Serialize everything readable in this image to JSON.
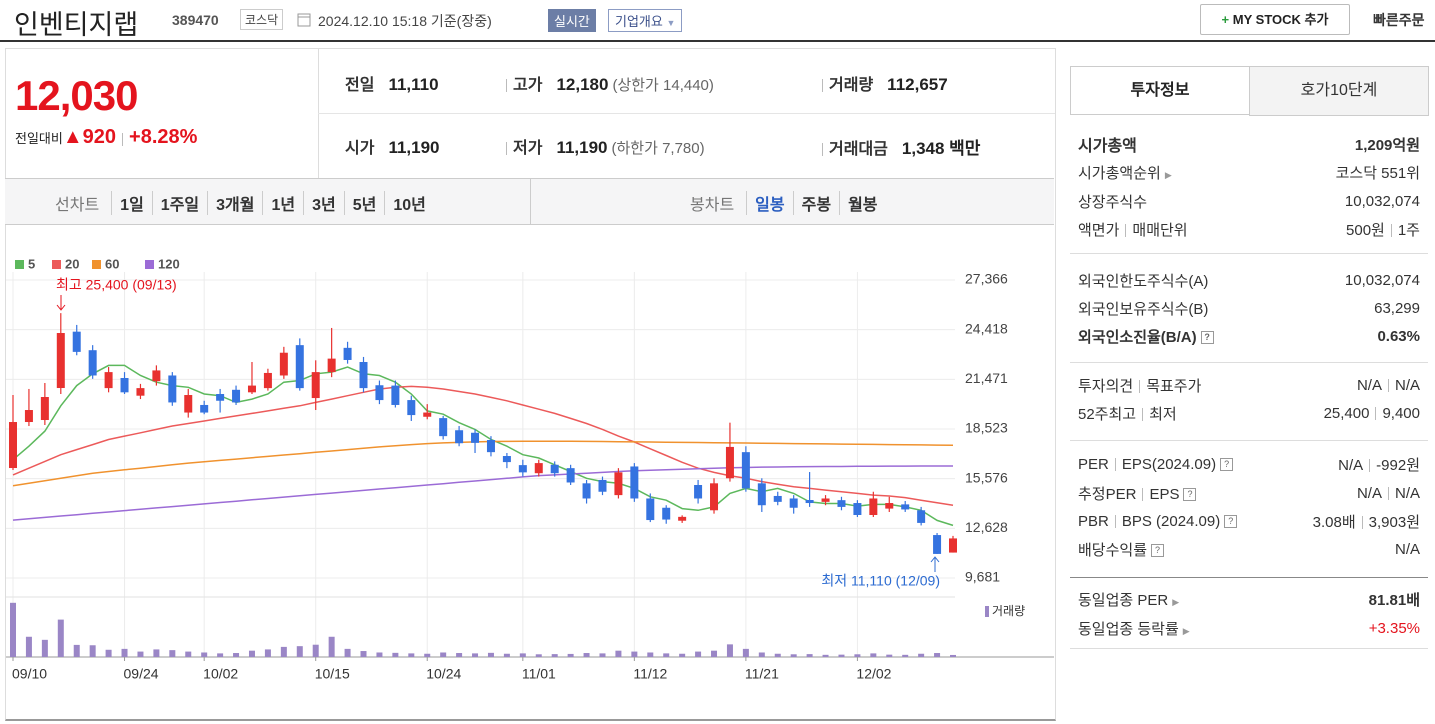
{
  "header": {
    "name": "인벤티지랩",
    "code": "389470",
    "market": "코스닥",
    "datetime": "2024.12.10 15:18",
    "basis": "기준(장중)",
    "realtime": "실시간",
    "company": "기업개요",
    "mystock": "MY STOCK 추가",
    "quick_order": "빠른주문"
  },
  "price": {
    "current": "12,030",
    "change_label": "전일대비",
    "change": "920",
    "rate": "+8.28%"
  },
  "summary": [
    {
      "label": "전일",
      "value": "11,110"
    },
    {
      "label": "고가",
      "value": "12,180",
      "note": "(상한가 14,440)"
    },
    {
      "label": "거래량",
      "value": "112,657"
    },
    {
      "label": "시가",
      "value": "11,190"
    },
    {
      "label": "저가",
      "value": "11,190",
      "note": "(하한가 7,780)"
    },
    {
      "label": "거래대금",
      "value": "1,348 백만"
    }
  ],
  "period_tabs": {
    "line_label": "선차트",
    "line": [
      "1일",
      "1주일",
      "3개월",
      "1년",
      "3년",
      "5년",
      "10년"
    ],
    "candle_label": "봉차트",
    "candle": [
      "일봉",
      "주봉",
      "월봉"
    ]
  },
  "chart_data": {
    "type": "candlestick",
    "categories": [
      "09/10",
      null,
      null,
      null,
      null,
      null,
      null,
      "09/24",
      null,
      null,
      null,
      null,
      "10/02",
      null,
      null,
      null,
      null,
      null,
      null,
      "10/15",
      null,
      null,
      null,
      null,
      null,
      null,
      "10/24",
      null,
      null,
      null,
      null,
      null,
      "11/01",
      null,
      null,
      null,
      null,
      null,
      null,
      "11/12",
      null,
      null,
      null,
      null,
      null,
      null,
      "11/21",
      null,
      null,
      null,
      null,
      null,
      null,
      "12/02",
      null,
      null,
      null,
      null,
      null,
      null
    ],
    "open": [
      16208,
      18938,
      19057,
      20956,
      24300,
      23200,
      20950,
      21550,
      20500,
      21360,
      21700,
      19500,
      19950,
      20600,
      20850,
      20700,
      20950,
      21700,
      23500,
      20360,
      21900,
      23340,
      22500,
      21120,
      21100,
      20240,
      19250,
      19170,
      18450,
      18300,
      17870,
      16920,
      16380,
      15900,
      16400,
      16200,
      15300,
      15500,
      14600,
      16300,
      14400,
      13850,
      13080,
      15200,
      13700,
      15600,
      17150,
      15300,
      14550,
      14400,
      14309,
      14200,
      14300,
      14130,
      13420,
      13800,
      14050,
      13700,
      12230,
      11190
    ],
    "high": [
      20541,
      20900,
      21253,
      25400,
      24700,
      23500,
      22200,
      21900,
      21200,
      22300,
      21900,
      20900,
      20200,
      20900,
      21100,
      22500,
      22100,
      23400,
      23900,
      22600,
      24520,
      23700,
      22800,
      21400,
      21400,
      20500,
      20000,
      19300,
      18700,
      18500,
      18100,
      17100,
      16700,
      16700,
      16600,
      16400,
      15500,
      15700,
      16200,
      16500,
      14700,
      14000,
      13400,
      15500,
      15600,
      18900,
      17500,
      15600,
      14800,
      14600,
      15970,
      14600,
      14500,
      14300,
      14800,
      14500,
      14250,
      13900,
      12350,
      12180
    ],
    "low": [
      16090,
      18700,
      18760,
      20600,
      22900,
      21500,
      20700,
      20600,
      20300,
      21100,
      19900,
      19200,
      19400,
      19500,
      19950,
      20600,
      20800,
      21500,
      20800,
      19650,
      21600,
      22400,
      20700,
      20000,
      19800,
      19000,
      19100,
      17900,
      17500,
      17100,
      16900,
      16200,
      15700,
      15700,
      15700,
      15200,
      14100,
      14600,
      14400,
      14200,
      13000,
      12900,
      12950,
      14100,
      13500,
      15400,
      14800,
      13600,
      14000,
      13500,
      13900,
      14000,
      13700,
      13300,
      13300,
      13600,
      13600,
      12800,
      11110,
      11190
    ],
    "close": [
      18938,
      19650,
      20422,
      24220,
      23100,
      21700,
      21900,
      20700,
      20950,
      22000,
      20100,
      20540,
      19500,
      20200,
      20100,
      21100,
      21850,
      23050,
      20950,
      21900,
      22700,
      22620,
      20950,
      20240,
      19950,
      19350,
      19500,
      18100,
      17680,
      17700,
      17150,
      16560,
      15950,
      16500,
      15900,
      15350,
      14400,
      14800,
      15950,
      14400,
      13120,
      13150,
      13310,
      14400,
      15300,
      17460,
      15000,
      14000,
      14200,
      13850,
      14130,
      14400,
      13900,
      13420,
      14400,
      14130,
      13750,
      12950,
      11110,
      12030
    ],
    "up_color": "#e8312f",
    "down_color": "#3573e0",
    "series": [
      {
        "name": "5",
        "color": "#5cb85c",
        "values": [
          16700,
          17500,
          18400,
          19900,
          21100,
          21800,
          22300,
          22300,
          21700,
          21300,
          21100,
          21000,
          20600,
          20500,
          20100,
          20300,
          20600,
          21300,
          21400,
          21800,
          21900,
          22200,
          21800,
          21700,
          21300,
          20600,
          19600,
          19400,
          18900,
          18500,
          17900,
          17500,
          17000,
          16800,
          16400,
          16000,
          15600,
          15400,
          15300,
          15000,
          14500,
          14300,
          13800,
          13700,
          13900,
          14700,
          15000,
          14800,
          15000,
          14700,
          14200,
          14100,
          14100,
          13950,
          14050,
          14050,
          13900,
          13700,
          13100,
          12800
        ]
      },
      {
        "name": "20",
        "color": "#ec5a5a",
        "values": [
          15800,
          16200,
          16600,
          17000,
          17300,
          17600,
          17900,
          18100,
          18300,
          18500,
          18700,
          18850,
          19000,
          19150,
          19300,
          19450,
          19600,
          19750,
          19900,
          20100,
          20300,
          20500,
          20700,
          20900,
          21000,
          21050,
          21000,
          20900,
          20750,
          20600,
          20400,
          20200,
          19950,
          19700,
          19450,
          19150,
          18850,
          18500,
          18100,
          17750,
          17350,
          16950,
          16550,
          16200,
          15950,
          15750,
          15600,
          15400,
          15250,
          15100,
          15000,
          14900,
          14800,
          14700,
          14600,
          14550,
          14450,
          14300,
          14150,
          14000
        ]
      },
      {
        "name": "60",
        "color": "#f0922e",
        "values": [
          15150,
          15300,
          15450,
          15600,
          15750,
          15900,
          16000,
          16100,
          16200,
          16300,
          16400,
          16500,
          16580,
          16660,
          16740,
          16820,
          16900,
          16980,
          17060,
          17140,
          17220,
          17300,
          17380,
          17460,
          17530,
          17600,
          17660,
          17700,
          17730,
          17760,
          17780,
          17790,
          17800,
          17800,
          17800,
          17800,
          17790,
          17780,
          17770,
          17760,
          17750,
          17740,
          17730,
          17720,
          17710,
          17700,
          17690,
          17680,
          17670,
          17660,
          17650,
          17640,
          17630,
          17620,
          17610,
          17600,
          17590,
          17580,
          17570,
          17560
        ]
      },
      {
        "name": "120",
        "color": "#9b6bd6",
        "values": [
          13120,
          13200,
          13280,
          13360,
          13440,
          13520,
          13600,
          13680,
          13760,
          13840,
          13920,
          14000,
          14080,
          14160,
          14240,
          14320,
          14400,
          14480,
          14560,
          14640,
          14720,
          14800,
          14880,
          14960,
          15040,
          15120,
          15200,
          15280,
          15360,
          15440,
          15520,
          15600,
          15680,
          15760,
          15800,
          15850,
          15900,
          15950,
          16000,
          16040,
          16080,
          16110,
          16140,
          16170,
          16200,
          16220,
          16240,
          16260,
          16270,
          16280,
          16290,
          16300,
          16300,
          16310,
          16310,
          16320,
          16320,
          16330,
          16330,
          16330
        ]
      }
    ],
    "volume": {
      "name": "거래량",
      "color": "#9a86c6",
      "values": [
        3000000,
        1120000,
        950000,
        2070000,
        670000,
        650000,
        400000,
        450000,
        300000,
        420000,
        380000,
        300000,
        250000,
        200000,
        220000,
        350000,
        420000,
        560000,
        600000,
        680000,
        1120000,
        450000,
        330000,
        250000,
        230000,
        200000,
        180000,
        250000,
        220000,
        200000,
        230000,
        180000,
        200000,
        150000,
        160000,
        170000,
        220000,
        200000,
        350000,
        300000,
        250000,
        200000,
        180000,
        300000,
        350000,
        700000,
        450000,
        250000,
        180000,
        150000,
        160000,
        120000,
        130000,
        150000,
        200000,
        130000,
        120000,
        180000,
        220000,
        112657
      ]
    },
    "volume_ylim": [
      0,
      3100000
    ],
    "ylim": [
      9681,
      27366
    ],
    "yticks": [
      {
        "value": 9681,
        "label": "9,681"
      },
      {
        "value": 12628,
        "label": "12,628"
      },
      {
        "value": 15576,
        "label": "15,576"
      },
      {
        "value": 18523,
        "label": "18,523"
      },
      {
        "value": 21471,
        "label": "21,471"
      },
      {
        "value": 24418,
        "label": "24,418"
      },
      {
        "value": 27366,
        "label": "27,366"
      }
    ],
    "grid": true,
    "annotations": [
      {
        "text": "최고 25,400 (09/13)",
        "color": "#e4141e"
      },
      {
        "text": "최저 11,110 (12/09)",
        "color": "#2c6bd1"
      }
    ]
  },
  "invest_panel": {
    "tabs": [
      "투자정보",
      "호가10단계"
    ],
    "rows": [
      {
        "label": [
          "시가총액"
        ],
        "value": [
          "1,209억원"
        ]
      },
      {
        "label": [
          "시가총액순위"
        ],
        "value": [
          "코스닥 551위"
        ]
      },
      {
        "label": [
          "상장주식수"
        ],
        "value": [
          "10,032,074"
        ]
      },
      {
        "label": [
          "액면가",
          "매매단위"
        ],
        "value": [
          "500원",
          "1주"
        ]
      },
      {
        "label": [
          "외국인한도주식수(A)"
        ],
        "value": [
          "10,032,074"
        ]
      },
      {
        "label": [
          "외국인보유주식수(B)"
        ],
        "value": [
          "63,299"
        ]
      },
      {
        "label": [
          "외국인소진율(B/A)"
        ],
        "value": [
          "0.63%"
        ]
      },
      {
        "label": [
          "투자의견",
          "목표주가"
        ],
        "value": [
          "N/A",
          "N/A"
        ]
      },
      {
        "label": [
          "52주최고",
          "최저"
        ],
        "value": [
          "25,400",
          "9,400"
        ]
      },
      {
        "label": [
          "PER",
          "EPS(2024.09)"
        ],
        "value": [
          "N/A",
          "-992원"
        ]
      },
      {
        "label": [
          "추정PER",
          "EPS"
        ],
        "value": [
          "N/A",
          "N/A"
        ]
      },
      {
        "label": [
          "PBR",
          "BPS (2024.09)"
        ],
        "value": [
          "3.08배",
          "3,903원"
        ]
      },
      {
        "label": [
          "배당수익률"
        ],
        "value": [
          "N/A"
        ]
      },
      {
        "label": [
          "동일업종 PER"
        ],
        "value": [
          "81.81배"
        ]
      },
      {
        "label": [
          "동일업종 등락률"
        ],
        "value": [
          "+3.35%"
        ]
      }
    ]
  }
}
